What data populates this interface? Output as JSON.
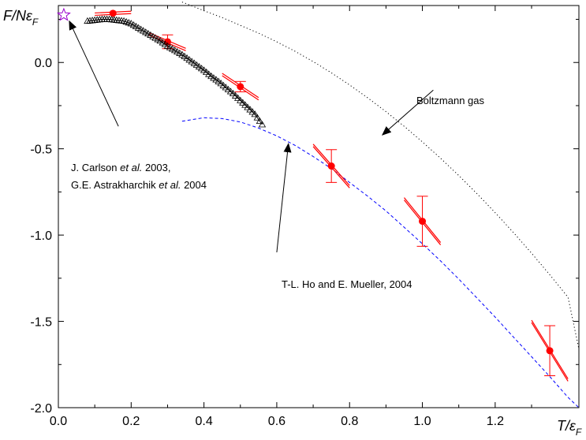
{
  "chart_data": {
    "type": "scatter",
    "xlim": [
      0.0,
      1.43
    ],
    "ylim": [
      -2.0,
      0.33
    ],
    "x_ticks": [
      "0.0",
      "0.2",
      "0.4",
      "0.6",
      "0.8",
      "1.0",
      "1.2"
    ],
    "x_tick_values": [
      0.0,
      0.2,
      0.4,
      0.6,
      0.8,
      1.0,
      1.2
    ],
    "y_ticks": [
      "0.0",
      "-0.5",
      "-1.0",
      "-1.5",
      "-2.0"
    ],
    "y_tick_values": [
      0.0,
      -0.5,
      -1.0,
      -1.5,
      -2.0
    ],
    "xlabel": {
      "main": "T/ε",
      "sub": "F"
    },
    "ylabel": {
      "main": "F/Nε",
      "sub": "F"
    },
    "grid": false,
    "colors": {
      "red": "#ff0000",
      "blue": "#0000ff",
      "black": "#000000",
      "purple": "#9900cc"
    },
    "series": [
      {
        "kind": "red-points-with-errorbars",
        "points": [
          {
            "x": 0.15,
            "y": 0.285,
            "yerr": 0.0,
            "tangent_slope": 0.1,
            "tangent_half_width": 0.05
          },
          {
            "x": 0.3,
            "y": 0.12,
            "yerr": 0.04,
            "tangent_slope": -0.9,
            "tangent_half_width": 0.05
          },
          {
            "x": 0.5,
            "y": -0.14,
            "yerr": 0.03,
            "tangent_slope": -1.4,
            "tangent_half_width": 0.05
          },
          {
            "x": 0.75,
            "y": -0.6,
            "yerr": 0.095,
            "tangent_slope": -2.4,
            "tangent_half_width": 0.05
          },
          {
            "x": 1.0,
            "y": -0.92,
            "yerr": 0.145,
            "tangent_slope": -2.6,
            "tangent_half_width": 0.05
          },
          {
            "x": 1.35,
            "y": -1.67,
            "yerr": 0.145,
            "tangent_slope": -3.4,
            "tangent_half_width": 0.05
          }
        ]
      },
      {
        "kind": "black-triangles",
        "x": [
          0.08,
          0.1,
          0.12,
          0.14,
          0.16,
          0.18,
          0.2,
          0.22,
          0.24,
          0.26,
          0.28,
          0.3,
          0.32,
          0.34,
          0.36,
          0.38,
          0.4,
          0.42,
          0.44,
          0.46,
          0.48,
          0.5,
          0.52,
          0.54,
          0.56
        ],
        "y": [
          0.24,
          0.245,
          0.25,
          0.25,
          0.245,
          0.24,
          0.225,
          0.2,
          0.175,
          0.15,
          0.125,
          0.095,
          0.07,
          0.045,
          0.015,
          -0.015,
          -0.045,
          -0.08,
          -0.11,
          -0.145,
          -0.18,
          -0.22,
          -0.26,
          -0.3,
          -0.36
        ]
      },
      {
        "kind": "star",
        "x": 0.015,
        "y": 0.275
      },
      {
        "kind": "blue-dashed-curve",
        "x": [
          0.34,
          0.4,
          0.45,
          0.5,
          0.55,
          0.6,
          0.65,
          0.7,
          0.75,
          0.8,
          0.85,
          0.9,
          0.95,
          1.0,
          1.05,
          1.1,
          1.15,
          1.2,
          1.25,
          1.3,
          1.35,
          1.4,
          1.43
        ],
        "y": [
          -0.34,
          -0.32,
          -0.325,
          -0.345,
          -0.38,
          -0.425,
          -0.48,
          -0.545,
          -0.615,
          -0.695,
          -0.775,
          -0.86,
          -0.955,
          -1.05,
          -1.15,
          -1.255,
          -1.365,
          -1.475,
          -1.59,
          -1.705,
          -1.82,
          -1.94,
          -2.0
        ]
      },
      {
        "kind": "black-dotted-curve",
        "x": [
          0.34,
          0.4,
          0.45,
          0.5,
          0.55,
          0.6,
          0.65,
          0.7,
          0.75,
          0.8,
          0.85,
          0.9,
          0.95,
          1.0,
          1.05,
          1.1,
          1.15,
          1.2,
          1.25,
          1.3,
          1.35,
          1.4,
          1.43
        ],
        "y": [
          0.35,
          0.3,
          0.26,
          0.215,
          0.17,
          0.12,
          0.065,
          0.005,
          -0.06,
          -0.13,
          -0.205,
          -0.285,
          -0.37,
          -0.46,
          -0.555,
          -0.655,
          -0.76,
          -0.87,
          -0.985,
          -1.105,
          -1.23,
          -1.36,
          -1.66
        ]
      }
    ],
    "annotations": [
      {
        "id": "carlson",
        "lines": [
          [
            {
              "t": "J. Carlson ",
              "i": false
            },
            {
              "t": "et al.",
              "i": true
            },
            {
              "t": " 2003,",
              "i": false
            }
          ],
          [
            {
              "t": "G.E. Astrakharchik ",
              "i": false
            },
            {
              "t": "et al.",
              "i": true
            },
            {
              "t": " 2004",
              "i": false
            }
          ]
        ],
        "arrow_tail": [
          0.165,
          -0.37
        ],
        "arrow_head": [
          0.03,
          0.24
        ]
      },
      {
        "id": "ho",
        "lines": [
          [
            {
              "t": "T-L. Ho and E. Mueller, 2004",
              "i": false
            }
          ]
        ],
        "arrow_tail": [
          0.6,
          -1.1
        ],
        "arrow_head": [
          0.632,
          -0.47
        ]
      },
      {
        "id": "boltzmann",
        "lines": [
          [
            {
              "t": "Boltzmann gas",
              "i": false
            }
          ]
        ],
        "arrow_tail": [
          1.03,
          -0.16
        ],
        "arrow_head": [
          0.89,
          -0.42
        ]
      }
    ]
  }
}
